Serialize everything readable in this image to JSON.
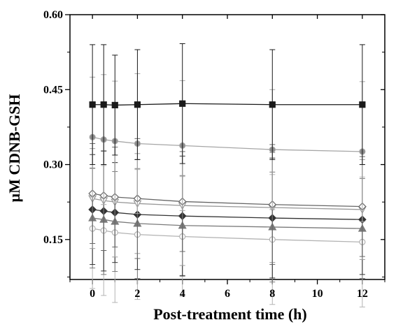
{
  "chart_data": {
    "type": "line",
    "xlabel": "Post-treatment time (h)",
    "ylabel": "µM CDNB-GSH",
    "xlim": [
      -1,
      13
    ],
    "ylim": [
      0.07,
      0.6
    ],
    "x_ticks": [
      0,
      2,
      4,
      6,
      8,
      10,
      12
    ],
    "y_ticks": [
      0.15,
      0.3,
      0.45,
      0.6
    ],
    "y_tick_labels": [
      "0.15",
      "0.30",
      "0.45",
      "0.60"
    ],
    "grid": false,
    "x": [
      0,
      0.5,
      1,
      2,
      4,
      8,
      12
    ],
    "series": [
      {
        "marker": "square",
        "color": "#1a1a1a",
        "fill": "#1a1a1a",
        "values": [
          0.42,
          0.42,
          0.419,
          0.42,
          0.422,
          0.42,
          0.42
        ],
        "err": [
          0.12,
          0.12,
          0.1,
          0.11,
          0.12,
          0.11,
          0.12
        ]
      },
      {
        "marker": "circle",
        "color": "#a6a6a6",
        "fill": "#8c8c8c",
        "values": [
          0.355,
          0.35,
          0.347,
          0.342,
          0.338,
          0.33,
          0.326
        ],
        "err": [
          0.12,
          0.13,
          0.12,
          0.14,
          0.13,
          0.12,
          0.14
        ]
      },
      {
        "marker": "diamond-open",
        "color": "#666666",
        "fill": "#ffffff",
        "values": [
          0.242,
          0.238,
          0.235,
          0.232,
          0.226,
          0.22,
          0.216
        ],
        "err": [
          0.1,
          0.11,
          0.1,
          0.12,
          0.1,
          0.12,
          0.1
        ]
      },
      {
        "marker": "triangle-down-open",
        "color": "#999999",
        "fill": "#ffffff",
        "values": [
          0.232,
          0.228,
          0.225,
          0.222,
          0.218,
          0.214,
          0.21
        ],
        "err": [
          0.1,
          0.1,
          0.11,
          0.1,
          0.12,
          0.11,
          0.1
        ]
      },
      {
        "marker": "diamond",
        "color": "#333333",
        "fill": "#333333",
        "values": [
          0.21,
          0.207,
          0.204,
          0.2,
          0.197,
          0.193,
          0.19
        ],
        "err": [
          0.11,
          0.12,
          0.1,
          0.11,
          0.12,
          0.12,
          0.11
        ]
      },
      {
        "marker": "triangle",
        "color": "#7a7a7a",
        "fill": "#7a7a7a",
        "values": [
          0.193,
          0.19,
          0.186,
          0.182,
          0.178,
          0.175,
          0.172
        ],
        "err": [
          0.1,
          0.11,
          0.1,
          0.11,
          0.1,
          0.11,
          0.1
        ]
      },
      {
        "marker": "circle-open",
        "color": "#b3b3b3",
        "fill": "#ffffff",
        "values": [
          0.172,
          0.168,
          0.164,
          0.16,
          0.156,
          0.15,
          0.145
        ],
        "err": [
          0.12,
          0.13,
          0.14,
          0.13,
          0.12,
          0.13,
          0.13
        ]
      }
    ]
  }
}
